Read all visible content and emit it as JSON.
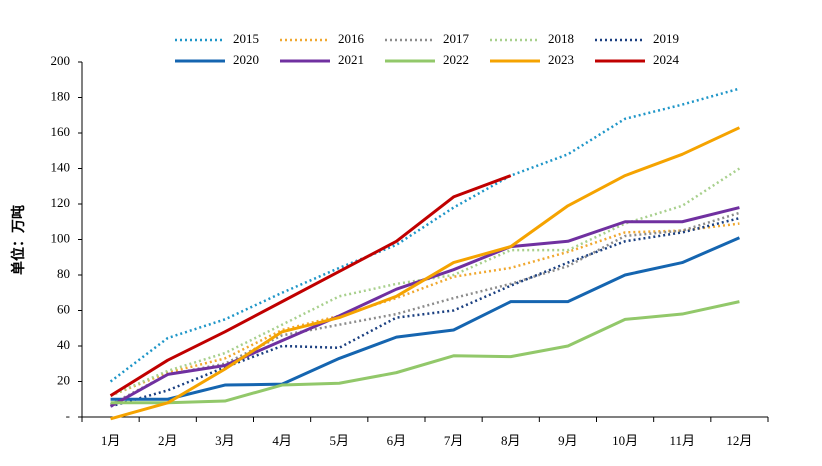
{
  "chart_data": {
    "type": "line",
    "y_label": "单位：万吨",
    "categories": [
      "1月",
      "2月",
      "3月",
      "4月",
      "5月",
      "6月",
      "7月",
      "8月",
      "9月",
      "10月",
      "11月",
      "12月"
    ],
    "ylim": [
      0,
      200
    ],
    "yticks": [
      {
        "value": 0,
        "label": "-"
      },
      20,
      40,
      60,
      80,
      100,
      120,
      140,
      160,
      180,
      200
    ],
    "series": [
      {
        "name": "2015",
        "color": "#1f96c8",
        "style": "dotted",
        "values": [
          20,
          44.5,
          55,
          70,
          84,
          97,
          118,
          136,
          148,
          168,
          176,
          185
        ]
      },
      {
        "name": "2016",
        "color": "#f0a830",
        "style": "dotted",
        "values": [
          12,
          25,
          33,
          49,
          57,
          67,
          79,
          84,
          93,
          104,
          105,
          109
        ]
      },
      {
        "name": "2017",
        "color": "#8c8c8c",
        "style": "dotted",
        "values": [
          7,
          24,
          30,
          46,
          52,
          58,
          67,
          75,
          85,
          102,
          105,
          115
        ]
      },
      {
        "name": "2018",
        "color": "#a8d08d",
        "style": "dotted",
        "values": [
          12,
          26,
          36,
          52,
          68,
          75,
          80,
          94,
          94,
          109,
          119,
          140
        ]
      },
      {
        "name": "2019",
        "color": "#1a3f80",
        "style": "dotted",
        "values": [
          6,
          15,
          28,
          40,
          39,
          56,
          60,
          74,
          87,
          99,
          104,
          112
        ]
      },
      {
        "name": "2020",
        "color": "#1565b0",
        "style": "solid",
        "values": [
          10,
          10,
          18,
          18.5,
          33,
          45,
          49,
          65,
          65,
          80,
          87,
          101
        ]
      },
      {
        "name": "2021",
        "color": "#7030a0",
        "style": "solid",
        "values": [
          6,
          24,
          29,
          43,
          57,
          72,
          83,
          96,
          99,
          110,
          110,
          118
        ]
      },
      {
        "name": "2022",
        "color": "#92c86a",
        "style": "solid",
        "values": [
          8,
          8,
          9,
          18,
          19,
          25,
          34.5,
          34,
          40,
          55,
          58,
          65
        ]
      },
      {
        "name": "2023",
        "color": "#f5a300",
        "style": "solid",
        "values": [
          -1,
          8,
          27,
          48,
          56,
          68,
          87,
          96,
          119,
          136,
          148,
          163
        ]
      },
      {
        "name": "2024",
        "color": "#c00000",
        "style": "solid",
        "values": [
          12,
          32,
          48,
          65,
          82,
          99,
          124,
          136,
          null,
          null,
          null,
          null
        ]
      }
    ]
  }
}
